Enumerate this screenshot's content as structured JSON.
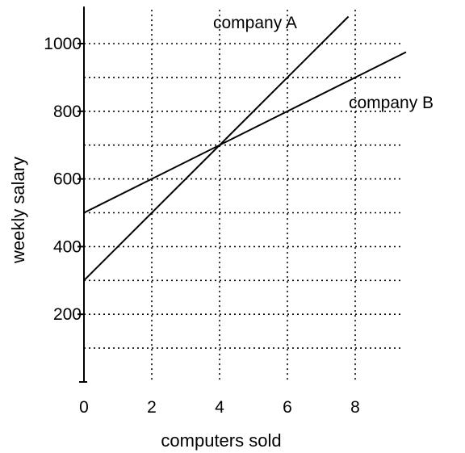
{
  "chart_data": {
    "type": "line",
    "title": "",
    "xlabel": "computers sold",
    "ylabel": "weekly salary",
    "xlim": [
      0,
      9.5
    ],
    "ylim": [
      0,
      1100
    ],
    "xticks": [
      0,
      2,
      4,
      6,
      8
    ],
    "xtick_labels": [
      "0",
      "2",
      "4",
      "6",
      "8"
    ],
    "yticks": [
      200,
      400,
      600,
      800,
      1000
    ],
    "ytick_labels": [
      "200",
      "400",
      "600",
      "800",
      "1000"
    ],
    "grid": true,
    "grid_style": "dotted",
    "series": [
      {
        "name": "company A",
        "x": [
          0,
          7.8
        ],
        "y": [
          300,
          1080
        ]
      },
      {
        "name": "company B",
        "x": [
          0,
          9.5
        ],
        "y": [
          500,
          975
        ]
      }
    ],
    "colors": {
      "line": "#000000",
      "grid": "#000000",
      "axis": "#000000"
    }
  }
}
